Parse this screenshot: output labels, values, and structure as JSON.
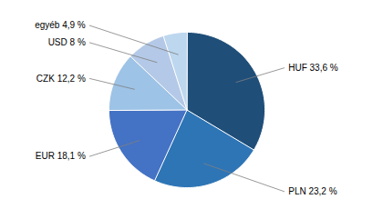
{
  "chart_data": {
    "type": "pie",
    "categories": [
      "HUF 33,6 %",
      "PLN 23,2 %",
      "EUR 18,1 %",
      "CZK 12,2 %",
      "USD 8 %",
      "egyéb 4,9 %"
    ],
    "values": [
      33.6,
      23.2,
      18.1,
      12.2,
      8.0,
      4.9
    ],
    "colors": [
      "#1f4e79",
      "#2e75b6",
      "#4472c4",
      "#9dc3e6",
      "#b4c9e7",
      "#bdd7ee"
    ]
  }
}
